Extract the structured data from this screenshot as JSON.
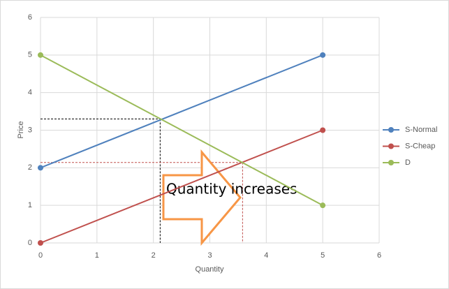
{
  "chart_data": {
    "type": "line",
    "x_label": "Quantity",
    "y_label": "Price",
    "x": [
      0,
      5
    ],
    "series": [
      {
        "name": "S-Normal",
        "color": "#4f81bd",
        "values": [
          2,
          5
        ]
      },
      {
        "name": "S-Cheap",
        "color": "#c0504d",
        "values": [
          0,
          3
        ]
      },
      {
        "name": "D",
        "color": "#9bbb59",
        "values": [
          5,
          1
        ]
      }
    ],
    "xlim": [
      0,
      6
    ],
    "xticks": [
      0,
      1,
      2,
      3,
      4,
      5,
      6
    ],
    "ylim": [
      0,
      6
    ],
    "yticks": [
      0,
      1,
      2,
      3,
      4,
      5,
      6
    ],
    "grid": true,
    "legend": "right",
    "reference_lines": [
      {
        "x": 2.12,
        "y": 3.3,
        "color": "#000000"
      },
      {
        "x": 3.58,
        "y": 2.14,
        "color": "#c0504d"
      }
    ],
    "annotation": "Quantity increases"
  }
}
